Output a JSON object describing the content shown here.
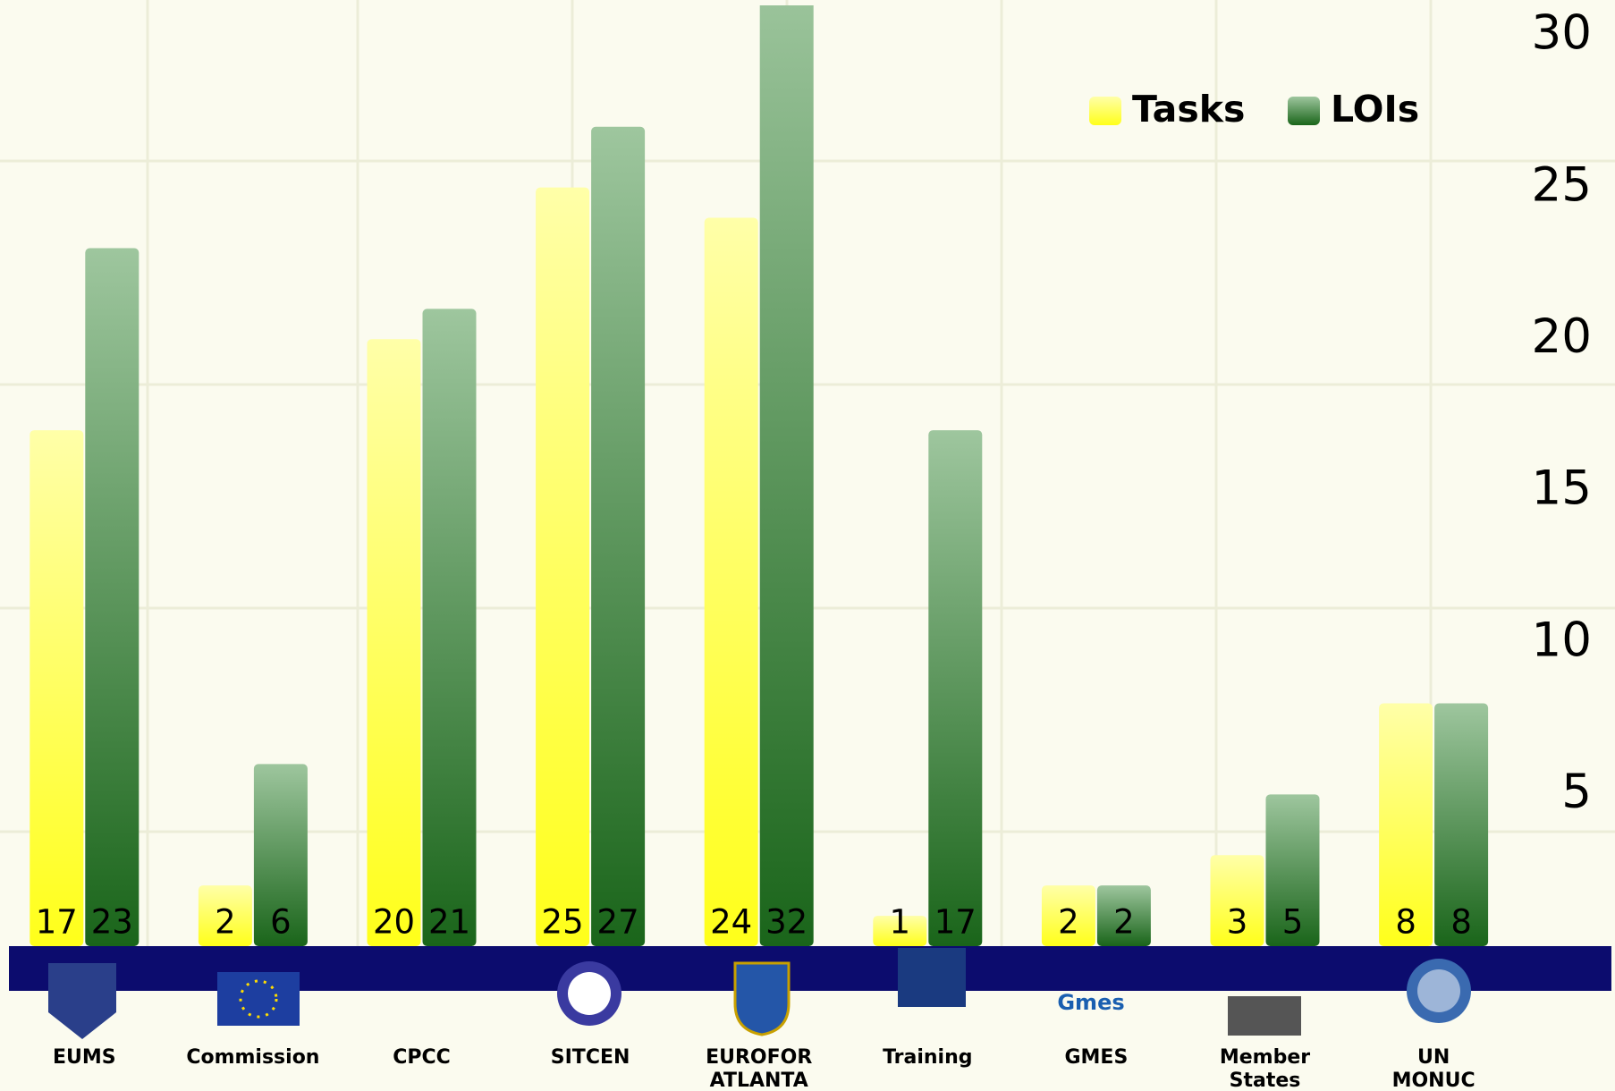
{
  "chart_data": {
    "type": "bar",
    "categories": [
      "EUMS",
      "Commission",
      "CPCC",
      "SITCEN",
      "EUROFOR\nATLANTA",
      "Training",
      "GMES",
      "Member States",
      "UN\nMONUC"
    ],
    "series": [
      {
        "name": "Tasks",
        "color": "#ffff1a",
        "values": [
          17,
          2,
          20,
          25,
          24,
          1,
          2,
          3,
          8
        ]
      },
      {
        "name": "LOIs",
        "color": "#1e6b1e",
        "values": [
          23,
          6,
          21,
          27,
          32,
          17,
          2,
          5,
          8
        ]
      }
    ],
    "ylim": [
      0,
      31
    ],
    "yticks": [
      5,
      10,
      15,
      20,
      25,
      30
    ],
    "legend": "top-right"
  }
}
